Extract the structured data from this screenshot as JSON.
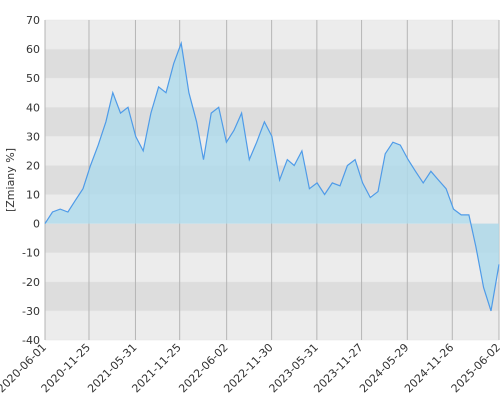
{
  "chart_data": {
    "type": "line",
    "y_label": "[Zmiany %]",
    "x": [
      "2020-06-01",
      "2020-07-01",
      "2020-08-01",
      "2020-09-01",
      "2020-10-01",
      "2020-11-01",
      "2020-12-01",
      "2021-01-01",
      "2021-02-01",
      "2021-03-01",
      "2021-04-01",
      "2021-05-01",
      "2021-06-01",
      "2021-07-01",
      "2021-08-01",
      "2021-09-01",
      "2021-10-01",
      "2021-11-01",
      "2021-12-01",
      "2022-01-01",
      "2022-02-01",
      "2022-03-01",
      "2022-04-01",
      "2022-05-01",
      "2022-06-01",
      "2022-07-01",
      "2022-08-01",
      "2022-09-01",
      "2022-10-01",
      "2022-11-01",
      "2022-12-01",
      "2023-01-01",
      "2023-02-01",
      "2023-03-01",
      "2023-04-01",
      "2023-05-01",
      "2023-06-01",
      "2023-07-01",
      "2023-08-01",
      "2023-09-01",
      "2023-10-01",
      "2023-11-01",
      "2023-12-01",
      "2024-01-01",
      "2024-02-01",
      "2024-03-01",
      "2024-04-01",
      "2024-05-01",
      "2024-06-01",
      "2024-07-01",
      "2024-08-01",
      "2024-09-01",
      "2024-10-01",
      "2024-11-01",
      "2024-12-01",
      "2025-01-01",
      "2025-02-01",
      "2025-03-01",
      "2025-04-01",
      "2025-05-01",
      "2025-06-02"
    ],
    "values": [
      0,
      4,
      5,
      4,
      8,
      12,
      20,
      27,
      35,
      45,
      38,
      40,
      30,
      25,
      38,
      47,
      45,
      55,
      62,
      45,
      35,
      22,
      38,
      40,
      28,
      32,
      38,
      22,
      28,
      35,
      30,
      15,
      22,
      20,
      25,
      12,
      14,
      10,
      14,
      13,
      20,
      22,
      14,
      9,
      11,
      24,
      28,
      27,
      22,
      18,
      14,
      18,
      15,
      12,
      5,
      3,
      3,
      -8,
      -22,
      -30,
      -14
    ],
    "color": "#4f9be8",
    "fill": "#aedbec",
    "xlim": [
      "2020-06-01",
      "2025-06-02"
    ],
    "xticks": [
      "2020-06-01",
      "2020-11-25",
      "2021-05-31",
      "2021-11-25",
      "2022-06-02",
      "2022-11-30",
      "2023-05-31",
      "2023-11-27",
      "2024-05-29",
      "2024-11-26",
      "2025-06-02"
    ],
    "ylim": [
      -40,
      70
    ],
    "yticks": [
      -40,
      -30,
      -20,
      -10,
      0,
      10,
      20,
      30,
      40,
      50,
      60,
      70
    ],
    "grid": true
  }
}
